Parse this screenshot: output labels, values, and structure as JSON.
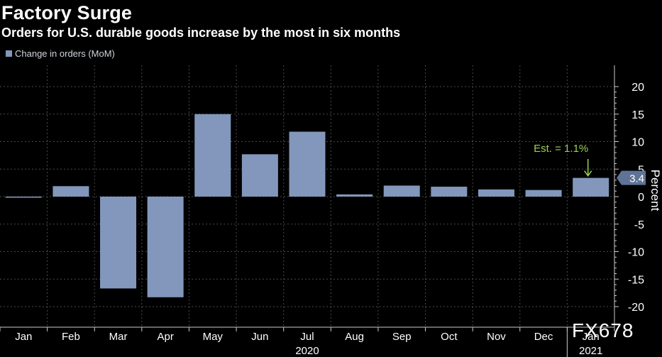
{
  "header": {
    "title": "Factory Surge",
    "subtitle": "Orders for U.S. durable goods increase by the most in six months"
  },
  "legend": {
    "label": "Change in orders (MoM)"
  },
  "watermark": "FX678",
  "colors": {
    "background": "#000000",
    "bar": "#8297bb",
    "grid": "#4a4a4a",
    "axis": "#cccccc",
    "annotation": "#9bd14f",
    "text": "#ffffff"
  },
  "chart_data": {
    "type": "bar",
    "categories": [
      "Jan",
      "Feb",
      "Mar",
      "Apr",
      "May",
      "Jun",
      "Jul",
      "Aug",
      "Sep",
      "Oct",
      "Nov",
      "Dec",
      "Jan"
    ],
    "year_labels": [
      {
        "label": "2020",
        "category_index": 6
      },
      {
        "label": "2021",
        "category_index": 12
      }
    ],
    "series": [
      {
        "name": "Change in orders (MoM)",
        "values": [
          -0.2,
          1.9,
          -16.7,
          -18.3,
          15.0,
          7.7,
          11.8,
          0.4,
          2.0,
          1.8,
          1.3,
          1.2,
          3.4
        ]
      }
    ],
    "ylabel": "Percent",
    "yticks": [
      20,
      15,
      10,
      5,
      0,
      -5,
      -10,
      -15,
      -20
    ],
    "ylim": [
      -21.5,
      23.5
    ],
    "y_axis_side": "right",
    "grid": true,
    "legend_position": "top-left",
    "last_value_label": "3.4",
    "annotation": {
      "text": "Est. = 1.1%",
      "category_index": 12
    }
  }
}
